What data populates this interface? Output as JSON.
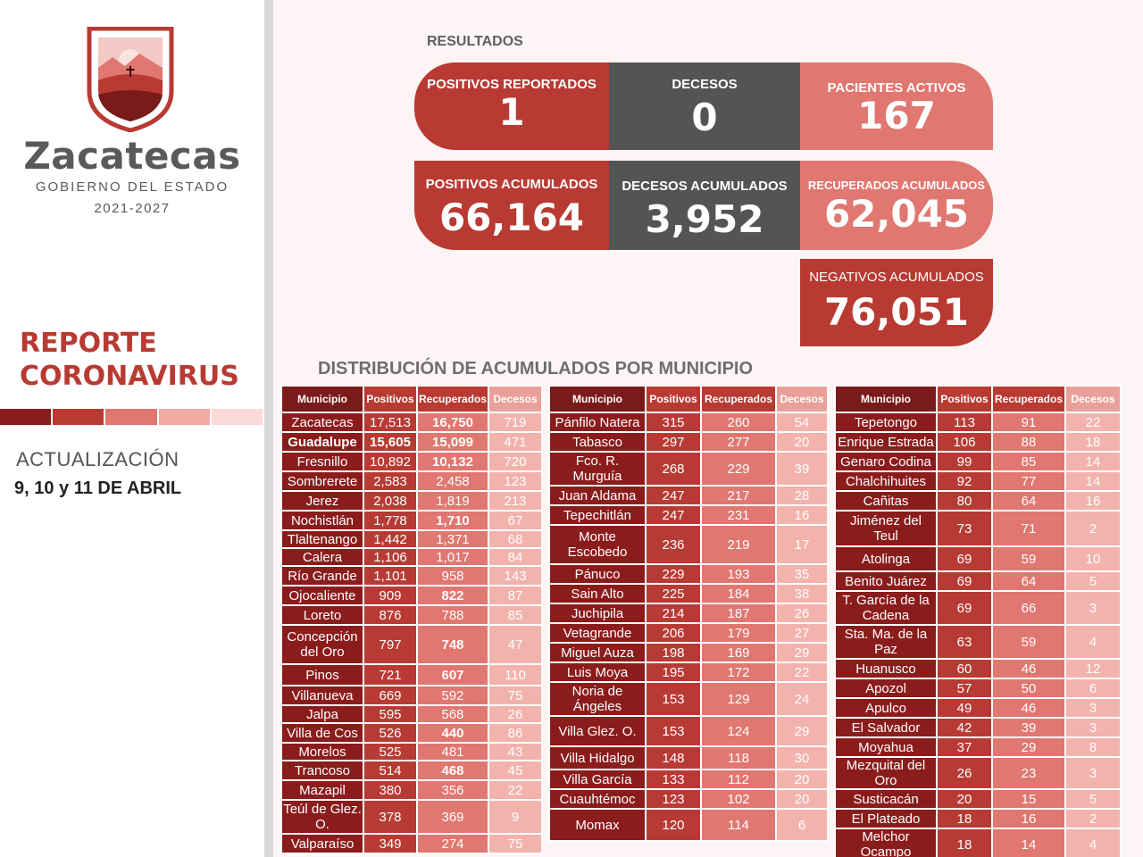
{
  "brand": {
    "name": "Zacatecas",
    "subtitle": "GOBIERNO DEL ESTADO",
    "years": "2021-2027"
  },
  "report": {
    "title_line1": "REPORTE",
    "title_line2": "CORONAVIRUS",
    "update_label": "ACTUALIZACIÓN",
    "update_date": "9, 10 y 11 DE ABRIL"
  },
  "stripe_colors": [
    "#8b1c1c",
    "#b83a32",
    "#e07770",
    "#f2aaa5",
    "#fbd9d6"
  ],
  "resultados_label": "RESULTADOS",
  "kpis": {
    "positivos_reportados": {
      "label": "POSITIVOS REPORTADOS",
      "value": "1"
    },
    "decesos": {
      "label": "DECESOS",
      "value": "0"
    },
    "pacientes_activos": {
      "label": "PACIENTES ACTIVOS",
      "value": "167"
    },
    "positivos_acumulados": {
      "label": "POSITIVOS ACUMULADOS",
      "value": "66,164"
    },
    "decesos_acumulados": {
      "label": "DECESOS ACUMULADOS",
      "value": "3,952"
    },
    "recuperados_acumulados": {
      "label": "RECUPERADOS ACUMULADOS",
      "value": "62,045"
    },
    "negativos_acumulados": {
      "label": "NEGATIVOS ACUMULADOS",
      "value": "76,051"
    }
  },
  "colors": {
    "dark_red": "#b83a32",
    "gray": "#545454",
    "pink": "#e07770"
  },
  "distribution_title": "DISTRIBUCIÓN DE ACUMULADOS POR MUNICIPIO",
  "table_headers": [
    "Municipio",
    "Positivos",
    "Recuperados",
    "Decesos"
  ],
  "tables": [
    [
      [
        "Zacatecas",
        "17,513",
        "16,750",
        "719"
      ],
      [
        "Guadalupe",
        "15,605",
        "15,099",
        "471"
      ],
      [
        "Fresnillo",
        "10,892",
        "10,132",
        "720"
      ],
      [
        "Sombrerete",
        "2,583",
        "2,458",
        "123"
      ],
      [
        "Jerez",
        "2,038",
        "1,819",
        "213"
      ],
      [
        "Nochistlán",
        "1,778",
        "1,710",
        "67"
      ],
      [
        "Tlaltenango",
        "1,442",
        "1,371",
        "68"
      ],
      [
        "Calera",
        "1,106",
        "1,017",
        "84"
      ],
      [
        "Río Grande",
        "1,101",
        "958",
        "143"
      ],
      [
        "Ojocaliente",
        "909",
        "822",
        "87"
      ],
      [
        "Loreto",
        "876",
        "788",
        "85"
      ],
      [
        "Concepción del Oro",
        "797",
        "748",
        "47"
      ],
      [
        "Pinos",
        "721",
        "607",
        "110"
      ],
      [
        "Villanueva",
        "669",
        "592",
        "75"
      ],
      [
        "Jalpa",
        "595",
        "568",
        "26"
      ],
      [
        "Villa de Cos",
        "526",
        "440",
        "86"
      ],
      [
        "Morelos",
        "525",
        "481",
        "43"
      ],
      [
        "Trancoso",
        "514",
        "468",
        "45"
      ],
      [
        "Mazapil",
        "380",
        "356",
        "22"
      ],
      [
        "Teúl de Glez. O.",
        "378",
        "369",
        "9"
      ],
      [
        "Valparaíso",
        "349",
        "274",
        "75"
      ]
    ],
    [
      [
        "Pánfilo Natera",
        "315",
        "260",
        "54"
      ],
      [
        "Tabasco",
        "297",
        "277",
        "20"
      ],
      [
        "Fco. R. Murguía",
        "268",
        "229",
        "39"
      ],
      [
        "Juan Aldama",
        "247",
        "217",
        "28"
      ],
      [
        "Tepechitlán",
        "247",
        "231",
        "16"
      ],
      [
        "Monte Escobedo",
        "236",
        "219",
        "17"
      ],
      [
        "Pánuco",
        "229",
        "193",
        "35"
      ],
      [
        "Sain Alto",
        "225",
        "184",
        "38"
      ],
      [
        "Juchipila",
        "214",
        "187",
        "26"
      ],
      [
        "Vetagrande",
        "206",
        "179",
        "27"
      ],
      [
        "Miguel Auza",
        "198",
        "169",
        "29"
      ],
      [
        "Luis Moya",
        "195",
        "172",
        "22"
      ],
      [
        "Noria de Ángeles",
        "153",
        "129",
        "24"
      ],
      [
        "Villa Glez. O.",
        "153",
        "124",
        "29"
      ],
      [
        "Villa Hidalgo",
        "148",
        "118",
        "30"
      ],
      [
        "Villa García",
        "133",
        "112",
        "20"
      ],
      [
        "Cuauhtémoc",
        "123",
        "102",
        "20"
      ],
      [
        "Momax",
        "120",
        "114",
        "6"
      ]
    ],
    [
      [
        "Tepetongo",
        "113",
        "91",
        "22"
      ],
      [
        "Enrique Estrada",
        "106",
        "88",
        "18"
      ],
      [
        "Genaro Codina",
        "99",
        "85",
        "14"
      ],
      [
        "Chalchihuites",
        "92",
        "77",
        "14"
      ],
      [
        "Cañitas",
        "80",
        "64",
        "16"
      ],
      [
        "Jiménez del Teul",
        "73",
        "71",
        "2"
      ],
      [
        "Atolinga",
        "69",
        "59",
        "10"
      ],
      [
        "Benito Juárez",
        "69",
        "64",
        "5"
      ],
      [
        "T. García de la Cadena",
        "69",
        "66",
        "3"
      ],
      [
        "Sta. Ma. de la Paz",
        "63",
        "59",
        "4"
      ],
      [
        "Huanusco",
        "60",
        "46",
        "12"
      ],
      [
        "Apozol",
        "57",
        "50",
        "6"
      ],
      [
        "Apulco",
        "49",
        "46",
        "3"
      ],
      [
        "El Salvador",
        "42",
        "39",
        "3"
      ],
      [
        "Moyahua",
        "37",
        "29",
        "8"
      ],
      [
        "Mezquital del Oro",
        "26",
        "23",
        "3"
      ],
      [
        "Susticacán",
        "20",
        "15",
        "5"
      ],
      [
        "El Plateado",
        "18",
        "16",
        "2"
      ],
      [
        "Melchor Ocampo",
        "18",
        "14",
        "4"
      ]
    ]
  ]
}
